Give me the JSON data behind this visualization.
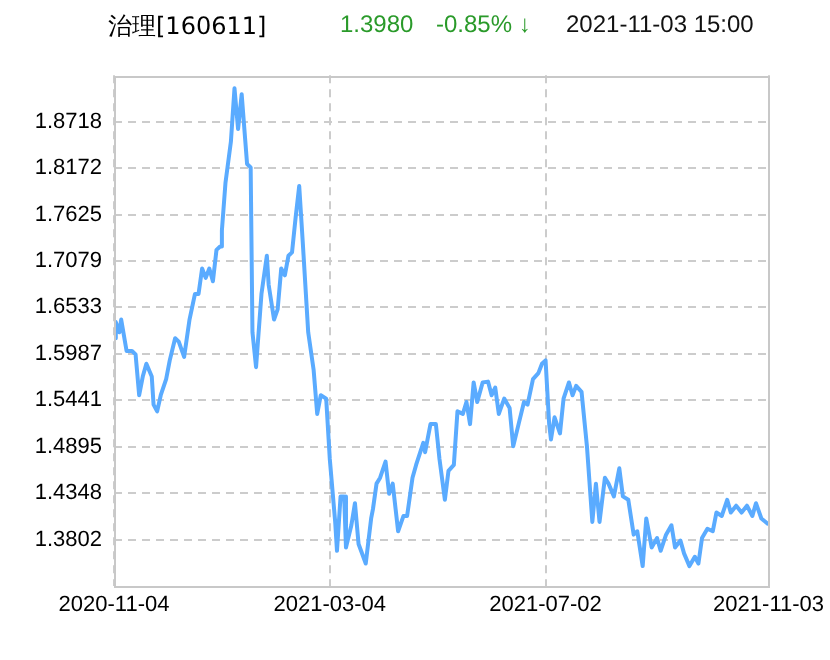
{
  "chart_data": {
    "type": "line",
    "title": "治理[160611]",
    "annotations": [
      "1.3980",
      "-0.85% ↓",
      "2021-11-03 15:00"
    ],
    "x": [
      "2020-11-04",
      "2020-11-05",
      "2020-11-07",
      "2020-11-08",
      "2020-11-11",
      "2020-11-14",
      "2020-11-16",
      "2020-11-18",
      "2020-11-20",
      "2020-11-22",
      "2020-11-25",
      "2020-11-26",
      "2020-11-28",
      "2020-11-30",
      "2020-12-03",
      "2020-12-05",
      "2020-12-08",
      "2020-12-10",
      "2020-12-13",
      "2020-12-16",
      "2020-12-19",
      "2020-12-21",
      "2020-12-23",
      "2020-12-25",
      "2020-12-27",
      "2020-12-29",
      "2020-12-31",
      "2021-01-02",
      "2021-01-03",
      "2021-01-05",
      "2021-01-08",
      "2021-01-10",
      "2021-01-12",
      "2021-01-14",
      "2021-01-17",
      "2021-01-19",
      "2021-01-20",
      "2021-01-22",
      "2021-01-25",
      "2021-01-28",
      "2021-01-29",
      "2021-02-01",
      "2021-02-03",
      "2021-02-05",
      "2021-02-07",
      "2021-02-09",
      "2021-02-11",
      "2021-02-13",
      "2021-02-15",
      "2021-02-17",
      "2021-02-20",
      "2021-02-23",
      "2021-02-25",
      "2021-02-27",
      "2021-03-02",
      "2021-03-04",
      "2021-03-07",
      "2021-03-08",
      "2021-03-10",
      "2021-03-12",
      "2021-03-13",
      "2021-03-16",
      "2021-03-18",
      "2021-03-20",
      "2021-03-24",
      "2021-03-27",
      "2021-03-28",
      "2021-03-30",
      "2021-04-01",
      "2021-04-04",
      "2021-04-06",
      "2021-04-08",
      "2021-04-11",
      "2021-04-14",
      "2021-04-16",
      "2021-04-19",
      "2021-04-21",
      "2021-04-25",
      "2021-04-26",
      "2021-04-29",
      "2021-05-02",
      "2021-05-04",
      "2021-05-07",
      "2021-05-09",
      "2021-05-12",
      "2021-05-14",
      "2021-05-17",
      "2021-05-19",
      "2021-05-21",
      "2021-05-23",
      "2021-05-25",
      "2021-05-28",
      "2021-05-31",
      "2021-06-02",
      "2021-06-04",
      "2021-06-06",
      "2021-06-09",
      "2021-06-12",
      "2021-06-14",
      "2021-06-17",
      "2021-06-20",
      "2021-06-22",
      "2021-06-25",
      "2021-06-28",
      "2021-06-30",
      "2021-07-02",
      "2021-07-04",
      "2021-07-05",
      "2021-07-07",
      "2021-07-10",
      "2021-07-12",
      "2021-07-15",
      "2021-07-17",
      "2021-07-19",
      "2021-07-22",
      "2021-07-25",
      "2021-07-28",
      "2021-07-30",
      "2021-08-01",
      "2021-08-04",
      "2021-08-06",
      "2021-08-09",
      "2021-08-12",
      "2021-08-14",
      "2021-08-17",
      "2021-08-20",
      "2021-08-22",
      "2021-08-25",
      "2021-08-27",
      "2021-08-30",
      "2021-09-02",
      "2021-09-04",
      "2021-09-07",
      "2021-09-10",
      "2021-09-12",
      "2021-09-15",
      "2021-09-17",
      "2021-09-20",
      "2021-09-23",
      "2021-09-25",
      "2021-09-27",
      "2021-09-30",
      "2021-10-03",
      "2021-10-05",
      "2021-10-08",
      "2021-10-11",
      "2021-10-13",
      "2021-10-16",
      "2021-10-19",
      "2021-10-22",
      "2021-10-25",
      "2021-10-27",
      "2021-10-30",
      "2021-11-03"
    ],
    "series": [
      {
        "color": "#5aabff",
        "values": [
          1.617,
          1.636,
          1.624,
          1.639,
          1.602,
          1.602,
          1.598,
          1.55,
          1.572,
          1.587,
          1.572,
          1.539,
          1.531,
          1.55,
          1.569,
          1.591,
          1.617,
          1.613,
          1.595,
          1.639,
          1.669,
          1.669,
          1.699,
          1.688,
          1.699,
          1.684,
          1.721,
          1.725,
          1.744,
          1.8,
          1.848,
          1.911,
          1.863,
          1.904,
          1.822,
          1.818,
          1.624,
          1.583,
          1.669,
          1.714,
          1.68,
          1.639,
          1.651,
          1.699,
          1.691,
          1.714,
          1.718,
          1.759,
          1.796,
          1.729,
          1.624,
          1.58,
          1.528,
          1.55,
          1.546,
          1.475,
          1.401,
          1.367,
          1.431,
          1.431,
          1.371,
          1.397,
          1.423,
          1.375,
          1.352,
          1.405,
          1.416,
          1.446,
          1.453,
          1.472,
          1.434,
          1.446,
          1.39,
          1.408,
          1.408,
          1.453,
          1.468,
          1.494,
          1.483,
          1.516,
          1.516,
          1.475,
          1.427,
          1.461,
          1.468,
          1.531,
          1.528,
          1.542,
          1.516,
          1.565,
          1.542,
          1.565,
          1.566,
          1.55,
          1.559,
          1.528,
          1.546,
          1.535,
          1.49,
          1.516,
          1.542,
          1.539,
          1.569,
          1.576,
          1.587,
          1.591,
          1.516,
          1.498,
          1.524,
          1.505,
          1.546,
          1.565,
          1.55,
          1.561,
          1.554,
          1.49,
          1.401,
          1.446,
          1.401,
          1.453,
          1.446,
          1.431,
          1.464,
          1.431,
          1.427,
          1.386,
          1.39,
          1.349,
          1.405,
          1.371,
          1.382,
          1.367,
          1.386,
          1.397,
          1.371,
          1.379,
          1.364,
          1.349,
          1.36,
          1.352,
          1.382,
          1.393,
          1.39,
          1.412,
          1.408,
          1.427,
          1.412,
          1.42,
          1.412,
          1.42,
          1.408,
          1.423,
          1.405,
          1.398
        ]
      }
    ],
    "xlim": [
      "2020-11-04",
      "2021-11-03"
    ],
    "xticks": [
      "2020-11-04",
      "2021-03-04",
      "2021-07-02",
      "2021-11-03"
    ],
    "ylim": [
      1.3256,
      1.9264
    ],
    "yticks": [
      1.3802,
      1.4348,
      1.4895,
      1.5441,
      1.5987,
      1.6533,
      1.7079,
      1.7625,
      1.8172,
      1.8718
    ],
    "grid": true,
    "marker": "none",
    "line_style": "solid",
    "legend": false
  }
}
